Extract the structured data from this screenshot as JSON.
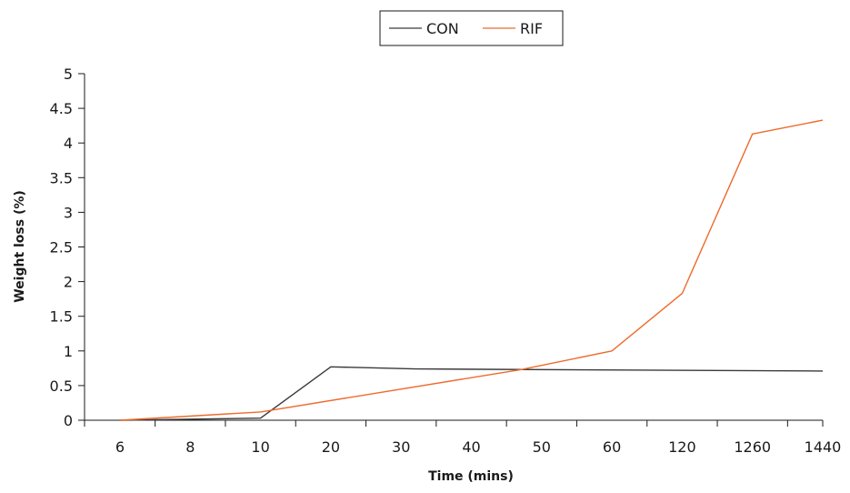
{
  "chart_data": {
    "type": "line",
    "categories": [
      "6",
      "8",
      "10",
      "20",
      "30",
      "40",
      "50",
      "60",
      "120",
      "1260",
      "1440"
    ],
    "series": [
      {
        "name": "CON",
        "color": "#3a3a3a",
        "points": [
          {
            "x": 0,
            "y": 0
          },
          {
            "x": 2,
            "y": 0.03
          },
          {
            "x": 3,
            "y": 0.77
          },
          {
            "x": 4.2,
            "y": 0.74
          },
          {
            "x": 10,
            "y": 0.71
          }
        ]
      },
      {
        "name": "RIF",
        "color": "#ee6a2c",
        "points": [
          {
            "x": 0,
            "y": 0
          },
          {
            "x": 2,
            "y": 0.12
          },
          {
            "x": 5.7,
            "y": 0.73
          },
          {
            "x": 7,
            "y": 1.0
          },
          {
            "x": 8,
            "y": 1.83
          },
          {
            "x": 9,
            "y": 4.13
          },
          {
            "x": 10,
            "y": 4.33
          }
        ]
      }
    ],
    "xlabel": "Time (mins)",
    "ylabel": "Weight loss (%)",
    "yticks": [
      "0",
      "0.5",
      "1",
      "1.5",
      "2",
      "2.5",
      "3",
      "3.5",
      "4",
      "4.5",
      "5"
    ],
    "ylim": [
      0,
      5
    ],
    "grid": false,
    "legend_position": "top-center"
  }
}
